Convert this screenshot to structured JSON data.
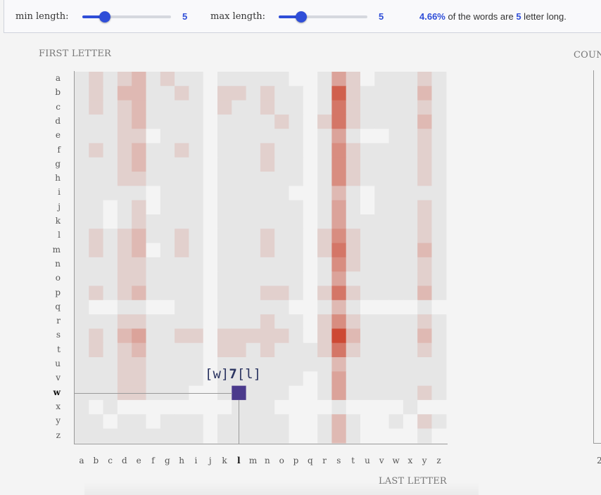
{
  "controls": {
    "min_label": "min length:",
    "min_value": "5",
    "max_label": "max length:",
    "max_value": "5",
    "slider_min_fraction": 0.25,
    "slider_max_fraction": 0.25,
    "accent_color": "#2f4ed8"
  },
  "summary": {
    "percent": "4.66%",
    "text_a": " of the words are ",
    "length": "5",
    "text_b": " letter long."
  },
  "tooltip": {
    "first": "[w]",
    "count": "7",
    "last": "[l]"
  },
  "right_panel": {
    "title": "COUN",
    "tick": "2"
  },
  "chart_data": {
    "type": "heatmap",
    "ylabel": "FIRST LETTER",
    "xlabel": "LAST LETTER",
    "rows": [
      "a",
      "b",
      "c",
      "d",
      "e",
      "f",
      "g",
      "h",
      "i",
      "j",
      "k",
      "l",
      "m",
      "n",
      "o",
      "p",
      "q",
      "r",
      "s",
      "t",
      "u",
      "v",
      "w",
      "x",
      "y",
      "z"
    ],
    "cols": [
      "a",
      "b",
      "c",
      "d",
      "e",
      "f",
      "g",
      "h",
      "i",
      "j",
      "k",
      "l",
      "m",
      "n",
      "o",
      "p",
      "q",
      "r",
      "s",
      "t",
      "u",
      "v",
      "w",
      "x",
      "y",
      "z"
    ],
    "highlight": {
      "row": "w",
      "col": "l",
      "value": 7
    },
    "color_low": "#e6e6e6",
    "color_high": "#c9331a",
    "highlight_color": "#4b3a8c",
    "intensity": [
      [
        1,
        2,
        1,
        2,
        3,
        1,
        2,
        1,
        1,
        0,
        1,
        1,
        1,
        1,
        1,
        0,
        0,
        1,
        4,
        2,
        0,
        1,
        1,
        1,
        2,
        1
      ],
      [
        1,
        2,
        1,
        3,
        3,
        1,
        1,
        2,
        1,
        0,
        2,
        2,
        1,
        2,
        1,
        1,
        0,
        1,
        7,
        2,
        1,
        1,
        1,
        1,
        3,
        1
      ],
      [
        1,
        2,
        1,
        2,
        3,
        1,
        1,
        1,
        1,
        0,
        2,
        1,
        1,
        2,
        1,
        1,
        0,
        1,
        6,
        2,
        1,
        1,
        1,
        1,
        2,
        1
      ],
      [
        1,
        1,
        1,
        2,
        3,
        1,
        1,
        1,
        1,
        0,
        1,
        1,
        1,
        1,
        2,
        1,
        0,
        2,
        6,
        2,
        1,
        1,
        1,
        1,
        3,
        1
      ],
      [
        1,
        1,
        1,
        2,
        2,
        0,
        1,
        1,
        1,
        0,
        1,
        1,
        1,
        1,
        1,
        1,
        0,
        1,
        4,
        1,
        0,
        0,
        1,
        1,
        2,
        1
      ],
      [
        1,
        2,
        1,
        2,
        3,
        1,
        1,
        2,
        1,
        0,
        1,
        1,
        1,
        2,
        1,
        1,
        0,
        1,
        5,
        2,
        1,
        1,
        1,
        1,
        2,
        1
      ],
      [
        1,
        1,
        1,
        2,
        3,
        1,
        1,
        1,
        1,
        0,
        1,
        1,
        1,
        2,
        1,
        1,
        0,
        1,
        5,
        2,
        1,
        1,
        1,
        1,
        2,
        1
      ],
      [
        1,
        1,
        1,
        2,
        2,
        1,
        1,
        1,
        1,
        0,
        1,
        1,
        1,
        1,
        1,
        1,
        0,
        1,
        5,
        2,
        1,
        1,
        1,
        1,
        2,
        1
      ],
      [
        1,
        1,
        1,
        1,
        1,
        0,
        1,
        1,
        1,
        0,
        1,
        1,
        1,
        1,
        1,
        0,
        0,
        1,
        3,
        1,
        0,
        1,
        1,
        1,
        1,
        1
      ],
      [
        1,
        1,
        0,
        1,
        2,
        0,
        1,
        1,
        1,
        0,
        1,
        1,
        1,
        1,
        1,
        1,
        0,
        1,
        4,
        1,
        0,
        1,
        1,
        1,
        2,
        1
      ],
      [
        1,
        1,
        0,
        1,
        2,
        1,
        1,
        1,
        1,
        0,
        1,
        1,
        1,
        1,
        1,
        1,
        0,
        1,
        4,
        1,
        1,
        1,
        1,
        1,
        2,
        1
      ],
      [
        1,
        2,
        1,
        2,
        3,
        1,
        1,
        2,
        1,
        0,
        1,
        1,
        1,
        2,
        1,
        1,
        0,
        2,
        5,
        2,
        1,
        1,
        1,
        1,
        2,
        1
      ],
      [
        1,
        2,
        1,
        2,
        3,
        0,
        1,
        2,
        1,
        0,
        1,
        1,
        1,
        2,
        1,
        1,
        0,
        2,
        6,
        2,
        1,
        1,
        1,
        1,
        3,
        1
      ],
      [
        1,
        1,
        1,
        2,
        2,
        1,
        1,
        1,
        1,
        0,
        1,
        1,
        1,
        1,
        1,
        1,
        0,
        1,
        5,
        2,
        1,
        1,
        1,
        1,
        2,
        1
      ],
      [
        1,
        1,
        1,
        2,
        2,
        1,
        1,
        1,
        1,
        0,
        1,
        1,
        1,
        1,
        1,
        1,
        0,
        1,
        4,
        1,
        1,
        1,
        1,
        1,
        2,
        1
      ],
      [
        1,
        2,
        1,
        2,
        3,
        1,
        1,
        1,
        1,
        0,
        1,
        1,
        1,
        2,
        2,
        1,
        0,
        2,
        6,
        2,
        1,
        1,
        1,
        1,
        3,
        1
      ],
      [
        1,
        0,
        0,
        1,
        1,
        0,
        0,
        1,
        1,
        0,
        1,
        1,
        1,
        1,
        1,
        0,
        0,
        1,
        3,
        1,
        0,
        0,
        0,
        0,
        1,
        0
      ],
      [
        1,
        1,
        1,
        2,
        2,
        1,
        1,
        1,
        1,
        0,
        1,
        1,
        1,
        2,
        1,
        1,
        0,
        2,
        5,
        2,
        1,
        1,
        1,
        1,
        2,
        1
      ],
      [
        1,
        2,
        1,
        3,
        4,
        1,
        1,
        2,
        2,
        0,
        2,
        2,
        2,
        2,
        2,
        1,
        0,
        2,
        8,
        3,
        1,
        1,
        1,
        1,
        3,
        1
      ],
      [
        1,
        2,
        1,
        2,
        3,
        1,
        1,
        1,
        1,
        0,
        2,
        2,
        1,
        2,
        1,
        1,
        1,
        2,
        6,
        2,
        1,
        1,
        1,
        1,
        2,
        1
      ],
      [
        1,
        1,
        1,
        2,
        2,
        1,
        1,
        1,
        1,
        0,
        1,
        1,
        1,
        1,
        1,
        1,
        1,
        1,
        3,
        1,
        1,
        1,
        1,
        1,
        1,
        1
      ],
      [
        1,
        1,
        1,
        2,
        2,
        1,
        1,
        1,
        1,
        0,
        1,
        1,
        1,
        1,
        1,
        1,
        0,
        1,
        4,
        1,
        1,
        1,
        1,
        1,
        1,
        1
      ],
      [
        1,
        1,
        1,
        2,
        2,
        1,
        1,
        1,
        0,
        0,
        1,
        9,
        1,
        1,
        1,
        0,
        0,
        1,
        4,
        1,
        1,
        1,
        1,
        1,
        2,
        1
      ],
      [
        1,
        0,
        1,
        0,
        0,
        0,
        0,
        0,
        0,
        0,
        0,
        1,
        1,
        1,
        0,
        0,
        0,
        0,
        1,
        0,
        0,
        0,
        0,
        1,
        0,
        0
      ],
      [
        1,
        1,
        0,
        1,
        1,
        0,
        1,
        1,
        1,
        0,
        1,
        1,
        1,
        1,
        1,
        0,
        0,
        1,
        3,
        1,
        0,
        0,
        1,
        0,
        2,
        1
      ],
      [
        1,
        1,
        1,
        1,
        1,
        1,
        1,
        1,
        1,
        0,
        1,
        1,
        1,
        1,
        1,
        0,
        0,
        1,
        3,
        1,
        0,
        0,
        0,
        0,
        1,
        0
      ]
    ]
  }
}
